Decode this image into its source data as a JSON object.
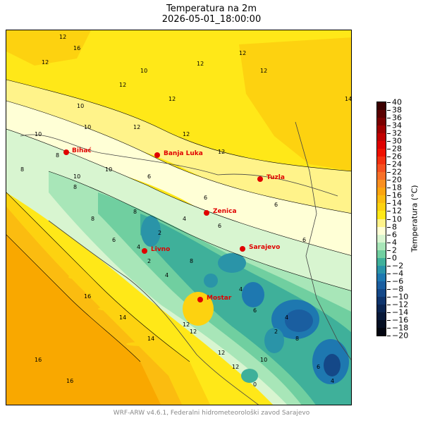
{
  "title": "Temperatura na 2m",
  "subtitle": "2026-05-01_18:00:00",
  "footer": "WRF-ARW v4.6.1, Federalni hidrometeorološki zavod Sarajevo",
  "colorbar": {
    "label": "Temperatura (°C)",
    "ticks": [
      "40",
      "38",
      "36",
      "34",
      "32",
      "30",
      "28",
      "26",
      "24",
      "22",
      "20",
      "18",
      "16",
      "14",
      "12",
      "10",
      "8",
      "6",
      "4",
      "2",
      "0",
      "−2",
      "−4",
      "−6",
      "−8",
      "−10",
      "−12",
      "−14",
      "−16",
      "−18",
      "−20"
    ],
    "colors": [
      "#3a0000",
      "#5a0000",
      "#7a0000",
      "#9e0000",
      "#c00000",
      "#dd0000",
      "#ee1000",
      "#f33010",
      "#f55020",
      "#f77028",
      "#f98f20",
      "#fba510",
      "#fbbc10",
      "#fdd210",
      "#ffe818",
      "#fff38a",
      "#ffffd6",
      "#d8f5d0",
      "#a8e6b8",
      "#70cfa0",
      "#3fb09a",
      "#2a94a8",
      "#1e78b0",
      "#1a5ea0",
      "#144888",
      "#0e346c",
      "#0a2450",
      "#071838",
      "#040e22",
      "#020510"
    ]
  },
  "cities": [
    {
      "name": "Bihać"
    },
    {
      "name": "Banja Luka"
    },
    {
      "name": "Tuzla"
    },
    {
      "name": "Zenica"
    },
    {
      "name": "Livno"
    },
    {
      "name": "Sarajevo"
    },
    {
      "name": "Mostar"
    }
  ],
  "contour_labels": [
    "12",
    "16",
    "12",
    "10",
    "12",
    "12",
    "12",
    "14",
    "12",
    "12",
    "10",
    "12",
    "10",
    "12",
    "10",
    "12",
    "8",
    "10",
    "8",
    "6",
    "6",
    "4",
    "6",
    "8",
    "6",
    "2",
    "4",
    "6",
    "4",
    "8",
    "6",
    "4",
    "2",
    "10",
    "12",
    "14",
    "16",
    "16",
    "14",
    "12",
    "16",
    "12",
    "12",
    "10",
    "8",
    "2",
    "4",
    "6",
    "8",
    "8",
    "6",
    "4",
    "0"
  ],
  "colors": {
    "city": "#e00000",
    "footer": "#888888"
  }
}
